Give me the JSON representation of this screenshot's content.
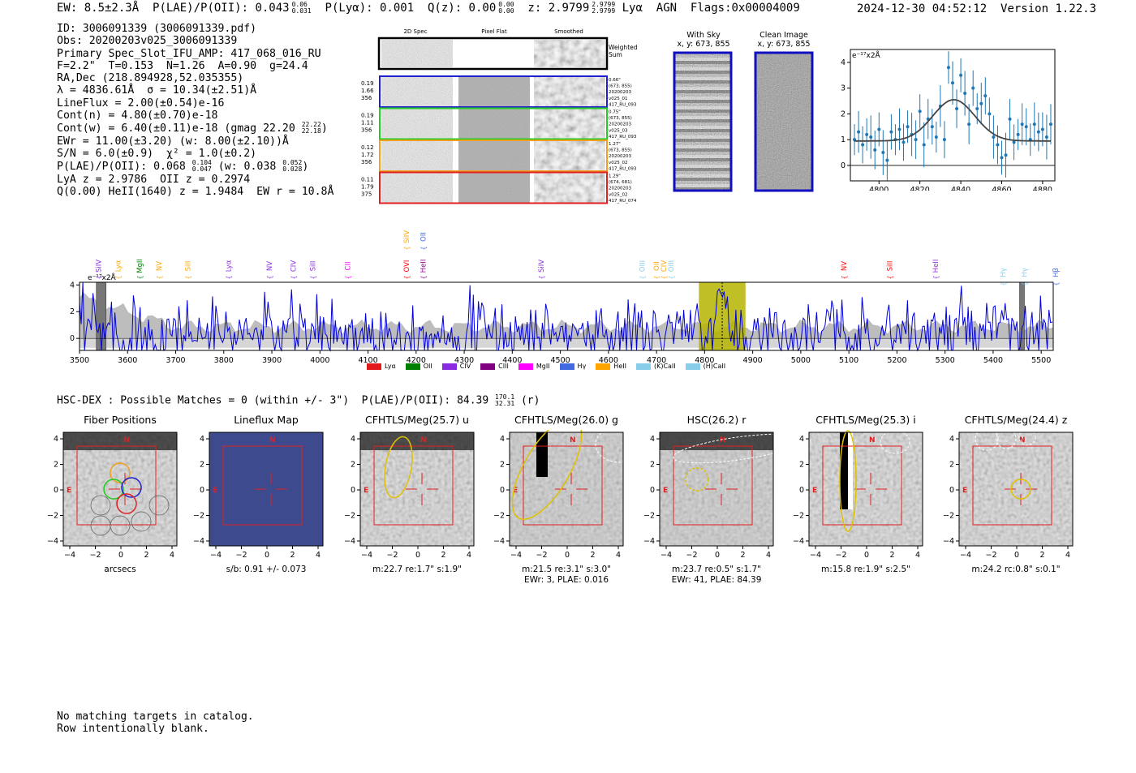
{
  "header": {
    "ew": "EW: 8.5±2.3Å",
    "plae_label": "P(LAE)/P(OII): 0.043",
    "plae_sup": "0.06",
    "plae_sub": "0.031",
    "plya": "P(Lyα): 0.001",
    "qz_label": "Q(z): 0.00",
    "qz_sup": "0.00",
    "qz_sub": "0.00",
    "z_label": "z: 2.9799",
    "z_sup": "2.9799",
    "z_sub": "2.9799",
    "line": "Lyα",
    "agn": "AGN",
    "flags": "Flags:0x00004009",
    "timestamp": "2024-12-30 04:52:12",
    "version": "Version 1.22.3"
  },
  "info": {
    "id": "ID: 3006091339 (3006091339.pdf)",
    "obs": "Obs: 20200203v025_3006091339",
    "primary": "Primary Spec_Slot_IFU_AMP: 417_068_016_RU",
    "fparams": "F=2.2\"  T=0.153  N=1.26  A=0.90  g=24.4",
    "radec": "RA,Dec (218.894928,52.035355)",
    "lambda": "λ = 4836.61Å  σ = 10.34(±2.51)Å",
    "lineflux": "LineFlux = 2.00(±0.54)e-16",
    "contn": "Cont(n) = 4.80(±0.70)e-18",
    "contw": "Cont(w) = 6.40(±0.11)e-18 (gmag 22.20",
    "contw_sup": "22.22",
    "contw_sub": "22.18",
    "contw_end": ")",
    "ewr": "EWr = 11.00(±3.20) (w: 8.00(±2.10))Å",
    "sn": "S/N = 6.0(±0.9)  χ² = 1.0(±0.2)",
    "plae2": "P(LAE)/P(OII): 0.068",
    "plae2_sup": "0.104",
    "plae2_sub": "0.047",
    "plae2_w": "(w: 0.038",
    "plae2_w_sup": "0.052",
    "plae2_w_sub": "0.028",
    "plae2_end": ")",
    "lyaz": "LyA z = 2.9786  OII z = 0.2974",
    "heii": "Q(0.00) HeII(1640) z = 1.9484  EW r = 10.8Å"
  },
  "cutouts": {
    "col_titles": [
      "2D Spec",
      "Pixel Flat",
      "Smoothed"
    ],
    "weighted": [
      "Weighted",
      "Sum"
    ],
    "rows": [
      {
        "left": [
          "0.19",
          "1.66",
          "356"
        ],
        "right": [
          "0.66\"",
          "(673, 855)",
          "20200203",
          "v025_01",
          "417_RU_093"
        ],
        "color": "#1f1fcf"
      },
      {
        "left": [
          "0.19",
          "1.11",
          "356"
        ],
        "right": [
          "0.75\"",
          "(673, 855)",
          "20200203",
          "v025_03",
          "417_RU_093"
        ],
        "color": "#22cc22"
      },
      {
        "left": [
          "0.12",
          "1.72",
          "356"
        ],
        "right": [
          "1.27\"",
          "(673, 855)",
          "20200203",
          "v025_02",
          "417_RU_093"
        ],
        "color": "#f0a020"
      },
      {
        "left": [
          "0.11",
          "1.79",
          "375"
        ],
        "right": [
          "1.29\"",
          "(674, 681)",
          "20200203",
          "v025_02",
          "417_RU_074"
        ],
        "color": "#e02020"
      }
    ]
  },
  "sky": {
    "with_sky": "With Sky",
    "with_sky_xy": "x, y: 673, 855",
    "clean": "Clean Image",
    "clean_xy": "x, y: 673, 855"
  },
  "chart_data": [
    {
      "type": "scatter",
      "title": "",
      "ylabel": "e⁻¹⁷x2Å",
      "xlim": [
        4786,
        4886
      ],
      "ylim": [
        -0.6,
        4.5
      ],
      "xticks": [
        4800,
        4820,
        4840,
        4860,
        4880
      ],
      "yticks": [
        0,
        1,
        2,
        3,
        4
      ],
      "fit": {
        "amplitude": 1.6,
        "center": 4836.6,
        "sigma": 10.3,
        "baseline": 0.95
      },
      "x": [
        4788,
        4790,
        4792,
        4794,
        4796,
        4798,
        4800,
        4802,
        4804,
        4806,
        4808,
        4810,
        4812,
        4814,
        4816,
        4818,
        4820,
        4822,
        4824,
        4826,
        4828,
        4830,
        4832,
        4834,
        4836,
        4838,
        4840,
        4842,
        4844,
        4846,
        4848,
        4850,
        4852,
        4854,
        4856,
        4858,
        4860,
        4862,
        4864,
        4866,
        4868,
        4870,
        4872,
        4874,
        4876,
        4878,
        4880,
        4882,
        4884
      ],
      "y": [
        1.0,
        1.3,
        0.8,
        1.2,
        1.1,
        0.6,
        1.4,
        0.5,
        0.2,
        1.3,
        1.0,
        1.4,
        0.9,
        1.5,
        1.2,
        1.0,
        2.1,
        0.8,
        1.8,
        1.5,
        1.1,
        2.3,
        1.0,
        3.8,
        3.2,
        2.2,
        3.5,
        2.8,
        1.6,
        3.0,
        2.2,
        2.4,
        2.7,
        2.0,
        1.1,
        0.8,
        0.3,
        0.4,
        1.8,
        0.9,
        1.2,
        1.6,
        1.5,
        1.0,
        1.6,
        1.3,
        1.4,
        1.1,
        1.6
      ],
      "yerr": 0.75
    },
    {
      "type": "line",
      "title": "",
      "ylabel": "e⁻¹⁷x2Å",
      "xlim": [
        3500,
        5525
      ],
      "ylim": [
        -0.9,
        4.2
      ],
      "xticks": [
        3500,
        3600,
        3700,
        3800,
        3900,
        4000,
        4100,
        4200,
        4300,
        4400,
        4500,
        4600,
        4700,
        4800,
        4900,
        5000,
        5100,
        5200,
        5300,
        5400,
        5500
      ],
      "yticks": [
        0,
        2,
        4
      ],
      "highlight_range": [
        4788,
        4885
      ],
      "line_wavelength": 4836.6,
      "masked_ranges": [
        [
          3535,
          3555
        ],
        [
          5455,
          5465
        ]
      ],
      "series": [
        {
          "name": "spectrum",
          "color": "#0000dd",
          "x_start": 3500,
          "x_step": 3.5,
          "count": 579,
          "noise_sigma": 1.3,
          "baseline": 0.4
        },
        {
          "name": "error",
          "color": "#b8b8b8"
        }
      ],
      "line_labels": [
        {
          "name": "SiIV",
          "x": 3540,
          "color": "#8a2be2",
          "row": 2
        },
        {
          "name": "Lyα",
          "x": 3580,
          "color": "#ffa500",
          "row": 2
        },
        {
          "name": "MgII",
          "x": 3625,
          "color": "#008000",
          "row": 2
        },
        {
          "name": "NV",
          "x": 3665,
          "color": "#ffa500",
          "row": 2
        },
        {
          "name": "SiII",
          "x": 3725,
          "color": "#ffa500",
          "row": 2
        },
        {
          "name": "Lyα",
          "x": 3810,
          "color": "#8a2be2",
          "row": 2
        },
        {
          "name": "NV",
          "x": 3895,
          "color": "#8a2be2",
          "row": 2
        },
        {
          "name": "CIV",
          "x": 3945,
          "color": "#8a2be2",
          "row": 2
        },
        {
          "name": "SiII",
          "x": 3985,
          "color": "#8a2be2",
          "row": 2
        },
        {
          "name": "CII",
          "x": 4058,
          "color": "#ff00ff",
          "row": 2
        },
        {
          "name": "SiIV",
          "x": 4180,
          "color": "#ffa500",
          "row": 1
        },
        {
          "name": "OII",
          "x": 4215,
          "color": "#4169e1",
          "row": 1
        },
        {
          "name": "OVI",
          "x": 4180,
          "color": "#ff0000",
          "row": 2
        },
        {
          "name": "HeII",
          "x": 4215,
          "color": "#8b008b",
          "row": 2
        },
        {
          "name": "SiIV",
          "x": 4460,
          "color": "#8a2be2",
          "row": 2
        },
        {
          "name": "OIII",
          "x": 4670,
          "color": "#87ceeb",
          "row": 2
        },
        {
          "name": "OII",
          "x": 4700,
          "color": "#ffa500",
          "row": 2
        },
        {
          "name": "CIV",
          "x": 4715,
          "color": "#ffa500",
          "row": 2
        },
        {
          "name": "OIII",
          "x": 4730,
          "color": "#87ceeb",
          "row": 2
        },
        {
          "name": "NV",
          "x": 5090,
          "color": "#ff0000",
          "row": 2
        },
        {
          "name": "SiII",
          "x": 5185,
          "color": "#ff0000",
          "row": 2
        },
        {
          "name": "HeII",
          "x": 5280,
          "color": "#8a2be2",
          "row": 2
        },
        {
          "name": "Hγ",
          "x": 5420,
          "color": "#87ceeb",
          "row": 3
        },
        {
          "name": "Hγ",
          "x": 5465,
          "color": "#87ceeb",
          "row": 3
        },
        {
          "name": "Hβ",
          "x": 5530,
          "color": "#4169e1",
          "row": 3
        }
      ]
    }
  ],
  "spec_legend": [
    {
      "label": "Lyα",
      "color": "#e31a1c"
    },
    {
      "label": "OII",
      "color": "#008000"
    },
    {
      "label": "CIV",
      "color": "#8a2be2"
    },
    {
      "label": "CIII",
      "color": "#800080"
    },
    {
      "label": "MgII",
      "color": "#ff00ff"
    },
    {
      "label": "Hγ",
      "color": "#4169e1"
    },
    {
      "label": "HeII",
      "color": "#ffa500"
    },
    {
      "label": "(K)CaII",
      "color": "#87ceeb"
    },
    {
      "label": "(H)CaII",
      "color": "#87ceeb"
    }
  ],
  "hsc": {
    "text": "HSC-DEX : Possible Matches = 0 (within +/- 3\")  P(LAE)/P(OII): 84.39",
    "sup": "170.1",
    "sub": "32.31",
    "end": "(r)"
  },
  "stamps": [
    {
      "title": "Fiber Positions",
      "cap1": "arcsecs",
      "cap2": ""
    },
    {
      "title": "Lineflux Map",
      "cap1": "s/b: 0.91 +/- 0.073",
      "cap2": ""
    },
    {
      "title": "CFHTLS/Meg(25.7) u",
      "cap1": "m:22.7  re:1.7\"  s:1.9\"",
      "cap2": ""
    },
    {
      "title": "CFHTLS/Meg(26.0) g",
      "cap1": "m:21.5  re:3.1\"  s:3.0\"",
      "cap2": "EWr: 3, PLAE: 0.016"
    },
    {
      "title": "HSC(26.2) r",
      "cap1": "m:23.7  re:0.5\"  s:1.7\"",
      "cap2": "EWr: 41, PLAE: 84.39"
    },
    {
      "title": "CFHTLS/Meg(25.3) i",
      "cap1": "m:15.8  re:1.9\"  s:2.5\"",
      "cap2": ""
    },
    {
      "title": "CFHTLS/Meg(24.4) z",
      "cap1": "m:24.2  rc:0.8\"  s:0.1\"",
      "cap2": ""
    }
  ],
  "stamp_axes": {
    "ticks": [
      "−4",
      "−2",
      "0",
      "2",
      "4"
    ],
    "n_label": "N",
    "e_label": "E"
  },
  "footer": {
    "line1": "No matching targets in catalog.",
    "line2": "Row intentionally blank."
  },
  "colors": {
    "blue": "#0000dd",
    "highlight": "#b5b500",
    "red": "#e02020",
    "frame_blue": "#1010c0"
  }
}
